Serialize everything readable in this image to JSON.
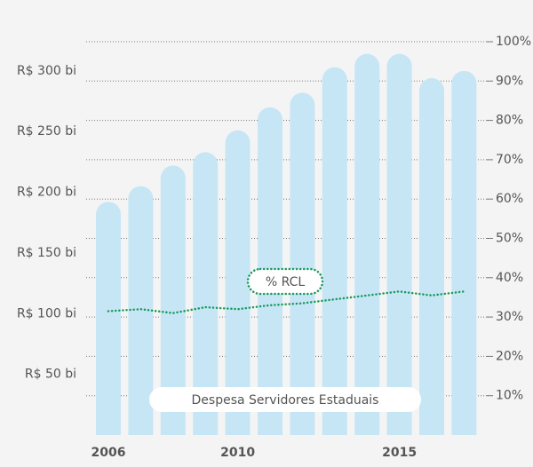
{
  "chart_data": {
    "type": "bar",
    "categories": [
      "2006",
      null,
      null,
      null,
      "2010",
      null,
      null,
      null,
      null,
      "2015",
      null,
      null
    ],
    "series": [
      {
        "name": "Despesa Servidores Estaduais",
        "type": "bar",
        "color": "#c6e6f6",
        "values": [
          192,
          205,
          222,
          233,
          251,
          270,
          282,
          303,
          314,
          314,
          294,
          300
        ]
      },
      {
        "name": "% RCL",
        "type": "line",
        "axis": "y2",
        "color": "#1a9a5a",
        "values": [
          31.5,
          32,
          31,
          32.5,
          32,
          33,
          33.5,
          34.5,
          35.5,
          36.5,
          35.5,
          36.5
        ]
      }
    ],
    "ylim": [
      0,
      324
    ],
    "yticks": [
      {
        "value": 50,
        "label": "R$ 50 bi"
      },
      {
        "value": 100,
        "label": "R$ 100 bi"
      },
      {
        "value": 150,
        "label": "R$ 150 bi"
      },
      {
        "value": 200,
        "label": "R$ 200 bi"
      },
      {
        "value": 250,
        "label": "R$ 250 bi"
      },
      {
        "value": 300,
        "label": "R$ 300 bi"
      }
    ],
    "y2lim": [
      0,
      100
    ],
    "y2ticks": [
      {
        "value": 10,
        "label": "10%"
      },
      {
        "value": 20,
        "label": "20%"
      },
      {
        "value": 30,
        "label": "30%"
      },
      {
        "value": 40,
        "label": "40%"
      },
      {
        "value": 50,
        "label": "50%"
      },
      {
        "value": 60,
        "label": "60%"
      },
      {
        "value": 70,
        "label": "70%"
      },
      {
        "value": 80,
        "label": "80%"
      },
      {
        "value": 90,
        "label": "90%"
      },
      {
        "value": 100,
        "label": "100%"
      }
    ],
    "grid": true
  }
}
